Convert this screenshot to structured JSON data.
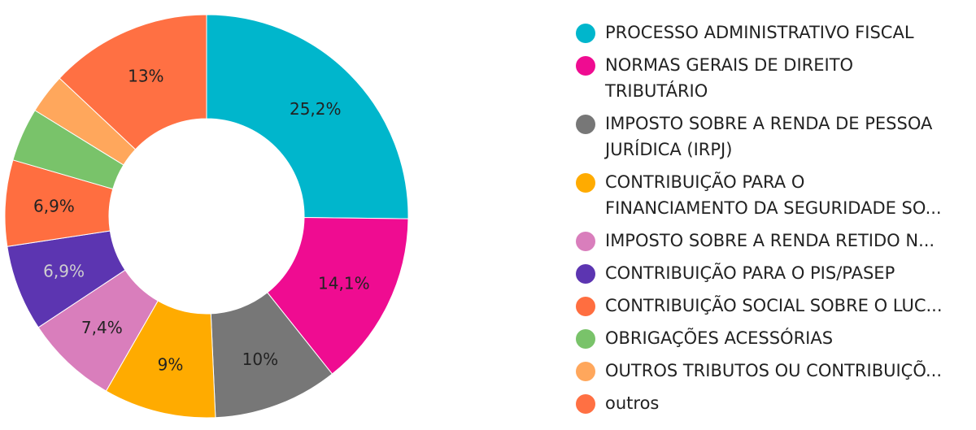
{
  "chart_data": {
    "type": "pie",
    "donut": true,
    "legend_position": "right",
    "title": "",
    "slices": [
      {
        "name": "PROCESSO ADMINISTRATIVO FISCAL",
        "legend_text": "PROCESSO ADMINISTRATIVO FISCAL",
        "value": 25.2,
        "label": "25,2%",
        "color": "#00b6cc",
        "label_color": "#222222"
      },
      {
        "name": "NORMAS GERAIS DE DIREITO TRIBUTÁRIO",
        "legend_text": "NORMAS GERAIS DE DIREITO\nTRIBUTÁRIO",
        "value": 14.1,
        "label": "14,1%",
        "color": "#ef0c91",
        "label_color": "#222222"
      },
      {
        "name": "IMPOSTO SOBRE A RENDA DE PESSOA JURÍDICA (IRPJ)",
        "legend_text": "IMPOSTO SOBRE A RENDA DE PESSOA\nJURÍDICA (IRPJ)",
        "value": 10,
        "label": "10%",
        "color": "#777777",
        "label_color": "#222222"
      },
      {
        "name": "CONTRIBUIÇÃO PARA O FINANCIAMENTO DA SEGURIDADE SO...",
        "legend_text": "CONTRIBUIÇÃO PARA O\nFINANCIAMENTO DA SEGURIDADE SO...",
        "value": 9,
        "label": "9%",
        "color": "#ffab00",
        "label_color": "#222222"
      },
      {
        "name": "IMPOSTO SOBRE A RENDA RETIDO N...",
        "legend_text": "IMPOSTO SOBRE A RENDA RETIDO N...",
        "value": 7.4,
        "label": "7,4%",
        "color": "#d97ebc",
        "label_color": "#222222"
      },
      {
        "name": "CONTRIBUIÇÃO PARA O PIS/PASEP",
        "legend_text": "CONTRIBUIÇÃO PARA O PIS/PASEP",
        "value": 6.9,
        "label": "6,9%",
        "color": "#5c35b1",
        "label_color": "#cfcfcf"
      },
      {
        "name": "CONTRIBUIÇÃO SOCIAL SOBRE O LUC...",
        "legend_text": "CONTRIBUIÇÃO SOCIAL SOBRE O LUC...",
        "value": 6.9,
        "label": "6,9%",
        "color": "#ff6e40",
        "label_color": "#222222"
      },
      {
        "name": "OBRIGAÇÕES ACESSÓRIAS",
        "legend_text": "OBRIGAÇÕES ACESSÓRIAS",
        "value": 4.3,
        "label": "",
        "color": "#79c36a",
        "label_color": "#222222"
      },
      {
        "name": "OUTROS TRIBUTOS OU CONTRIBUIÇÕ...",
        "legend_text": "OUTROS TRIBUTOS OU CONTRIBUIÇÕ...",
        "value": 3.2,
        "label": "",
        "color": "#ffa75c",
        "label_color": "#222222"
      },
      {
        "name": "outros",
        "legend_text": "outros",
        "value": 13,
        "label": "13%",
        "color": "#ff7043",
        "label_color": "#222222"
      }
    ]
  }
}
